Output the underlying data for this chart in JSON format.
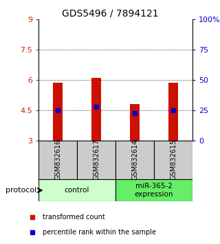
{
  "title": "GDS5496 / 7894121",
  "samples": [
    "GSM832616",
    "GSM832617",
    "GSM832614",
    "GSM832615"
  ],
  "bar_bottoms": [
    3.0,
    3.0,
    3.0,
    3.0
  ],
  "bar_tops": [
    5.85,
    6.1,
    4.8,
    5.85
  ],
  "percentile_values": [
    4.5,
    4.65,
    4.35,
    4.5
  ],
  "ylim": [
    3,
    9
  ],
  "yticks_left": [
    3,
    4.5,
    6,
    7.5,
    9
  ],
  "ytick_left_labels": [
    "3",
    "4.5",
    "6",
    "7.5",
    "9"
  ],
  "ytick_right_labels": [
    "0",
    "25",
    "50",
    "75",
    "100%"
  ],
  "bar_color": "#cc1100",
  "percentile_color": "#0000cc",
  "groups": [
    {
      "label": "control",
      "samples": [
        0,
        1
      ],
      "color": "#ccffcc"
    },
    {
      "label": "miR-365-2\nexpression",
      "samples": [
        2,
        3
      ],
      "color": "#66ee66"
    }
  ],
  "sample_box_color": "#cccccc",
  "legend_items": [
    {
      "color": "#cc1100",
      "label": "transformed count"
    },
    {
      "color": "#0000cc",
      "label": "percentile rank within the sample"
    }
  ],
  "protocol_label": "protocol",
  "title_fontsize": 10,
  "tick_fontsize": 8,
  "bar_width": 0.25
}
